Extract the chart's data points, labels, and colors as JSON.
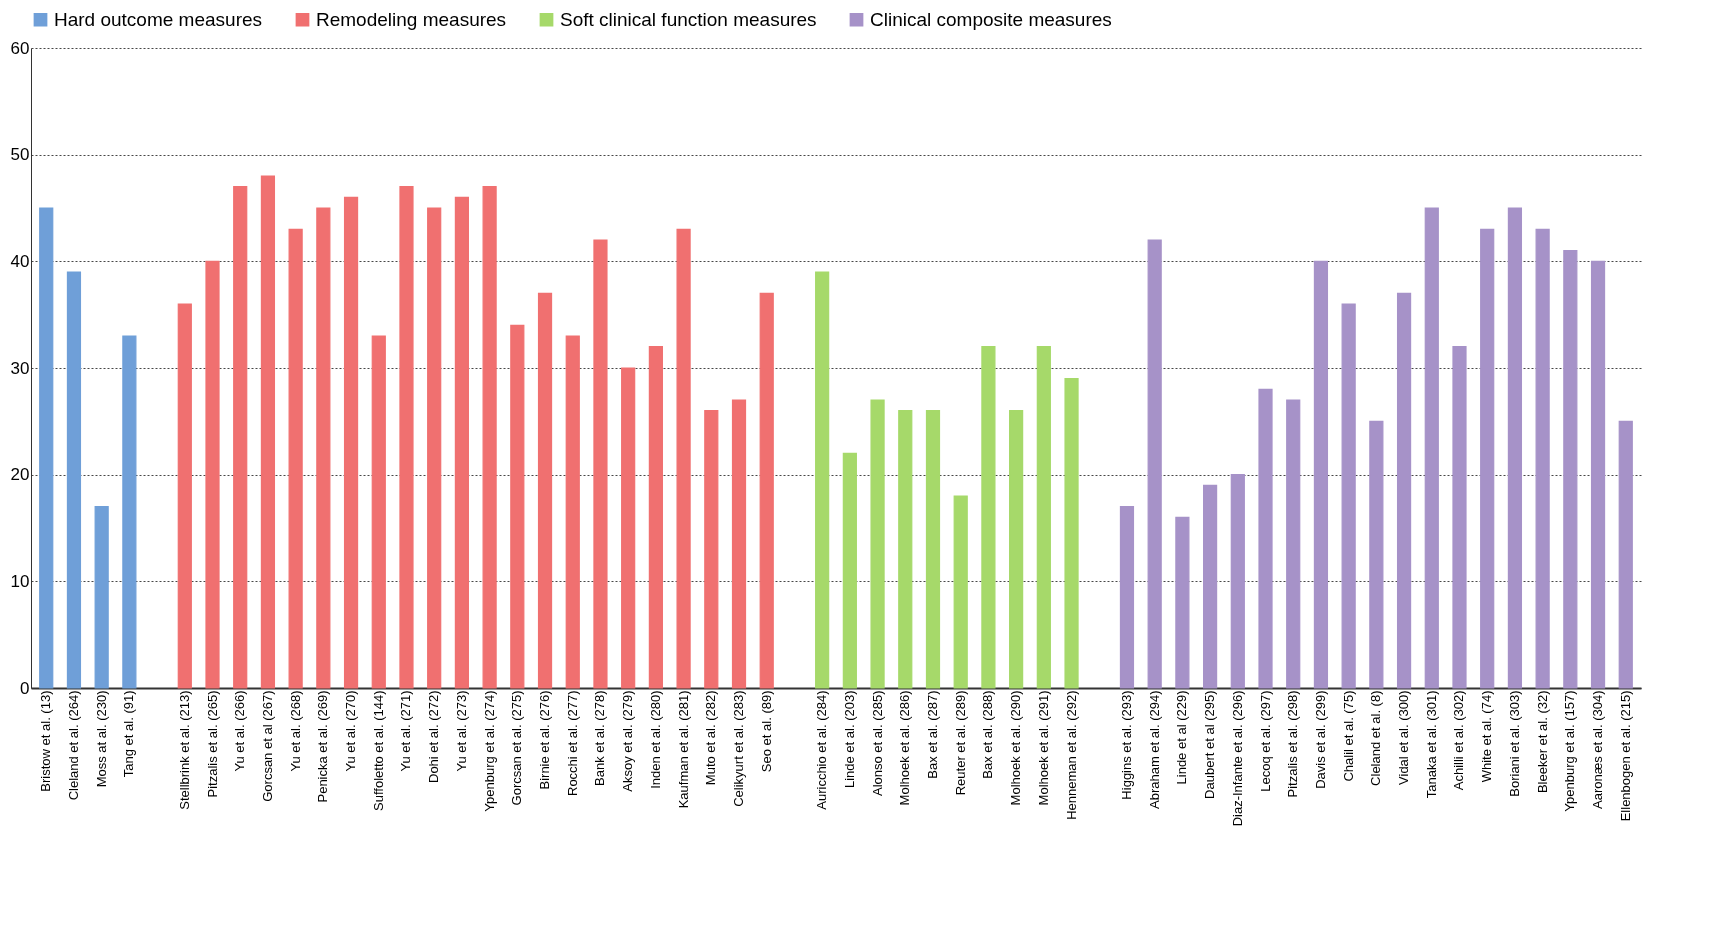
{
  "chart_data": {
    "type": "bar",
    "categories": [
      "Bristow et al. (13)",
      "Cleland et al. (264)",
      "Moss at al. (230)",
      "Tang et al. (91)",
      null,
      "Stellbrink et al. (213)",
      "Pitzalis et al. (265)",
      "Yu et al. (266)",
      "Gorcsan et al (267)",
      "Yu et al. (268)",
      "Penicka et al. (269)",
      "Yu et al. (270)",
      "Suffoletto et al. (144)",
      "Yu et al. (271)",
      "Dohi et al. (272)",
      "Yu et al. (273)",
      "Ypenburg et al. (274)",
      "Gorcsan et al. (275)",
      "Birnie et al. (276)",
      "Rocchi et al. (277)",
      "Bank et al. (278)",
      "Aksoy et al. (279)",
      "Inden et al. (280)",
      "Kaufman et al. (281)",
      "Muto et al. (282)",
      "Celikyurt et al. (283)",
      "Seo et al. (89)",
      null,
      "Auricchio et al. (284)",
      "Linde et al. (203)",
      "Alonso et al. (285)",
      "Molhoek et al. (286)",
      "Bax et al. (287)",
      "Reuter et al. (289)",
      "Bax et al. (288)",
      "Molhoek et al. (290)",
      "Molhoek et al. (291)",
      "Henneman et al. (292)",
      null,
      "Higgins et al. (293)",
      "Abraham et al. (294)",
      "Linde et al (229)",
      "Daubert et al (295)",
      "Diaz-Infante et al. (296)",
      "Lecoq et al. (297)",
      "Pitzalis et al. (298)",
      "Davis et al. (299)",
      "Chalil et al. (75)",
      "Cleland et al. (8)",
      "Vidal et al. (300)",
      "Tanaka et al. (301)",
      "Achilli et al. (302)",
      "White et al. (74)",
      "Boriani et al. (303)",
      "Bleeker et al. (32)",
      "Ypenburg et al. (157)",
      "Aaronæs et al. (304)",
      "Ellenbogen et al. (215)"
    ],
    "series": [
      {
        "name": "Hard outcome measures",
        "color": "#6f9fd8",
        "values": [
          45,
          39,
          17,
          33,
          null,
          null,
          null,
          null,
          null,
          null,
          null,
          null,
          null,
          null,
          null,
          null,
          null,
          null,
          null,
          null,
          null,
          null,
          null,
          null,
          null,
          null,
          null,
          null,
          null,
          null,
          null,
          null,
          null,
          null,
          null,
          null,
          null,
          null,
          null,
          null,
          null,
          null,
          null,
          null,
          null,
          null,
          null,
          null,
          null,
          null,
          null,
          null,
          null,
          null,
          null,
          null,
          null,
          null
        ]
      },
      {
        "name": "Remodeling measures",
        "color": "#f07070",
        "values": [
          null,
          null,
          null,
          null,
          null,
          36,
          40,
          47,
          48,
          43,
          45,
          46,
          33,
          47,
          45,
          46,
          47,
          34,
          37,
          33,
          42,
          30,
          32,
          43,
          26,
          27,
          37,
          null,
          null,
          null,
          null,
          null,
          null,
          null,
          null,
          null,
          null,
          null,
          null,
          null,
          null,
          null,
          null,
          null,
          null,
          null,
          null,
          null,
          null,
          null,
          null,
          null,
          null,
          null,
          null,
          null,
          null,
          null
        ]
      },
      {
        "name": "Soft clinical function measures",
        "color": "#a6d96a",
        "values": [
          null,
          null,
          null,
          null,
          null,
          null,
          null,
          null,
          null,
          null,
          null,
          null,
          null,
          null,
          null,
          null,
          null,
          null,
          null,
          null,
          null,
          null,
          null,
          null,
          null,
          null,
          null,
          null,
          39,
          22,
          27,
          26,
          26,
          18,
          32,
          26,
          32,
          29,
          null,
          null,
          null,
          null,
          null,
          null,
          null,
          null,
          null,
          null,
          null,
          null,
          null,
          null,
          null,
          null,
          null,
          null,
          null,
          null
        ]
      },
      {
        "name": "Clinical composite measures",
        "color": "#a692c8",
        "values": [
          null,
          null,
          null,
          null,
          null,
          null,
          null,
          null,
          null,
          null,
          null,
          null,
          null,
          null,
          null,
          null,
          null,
          null,
          null,
          null,
          null,
          null,
          null,
          null,
          null,
          null,
          null,
          null,
          null,
          null,
          null,
          null,
          null,
          null,
          null,
          null,
          null,
          null,
          null,
          17,
          42,
          16,
          19,
          20,
          28,
          27,
          40,
          36,
          25,
          37,
          45,
          32,
          43,
          45,
          43,
          41,
          40,
          25
        ]
      }
    ],
    "ylim": [
      0,
      60
    ],
    "yticks": [
      0,
      10,
      20,
      30,
      40,
      50,
      60
    ],
    "grid": "y",
    "legend": "top"
  }
}
